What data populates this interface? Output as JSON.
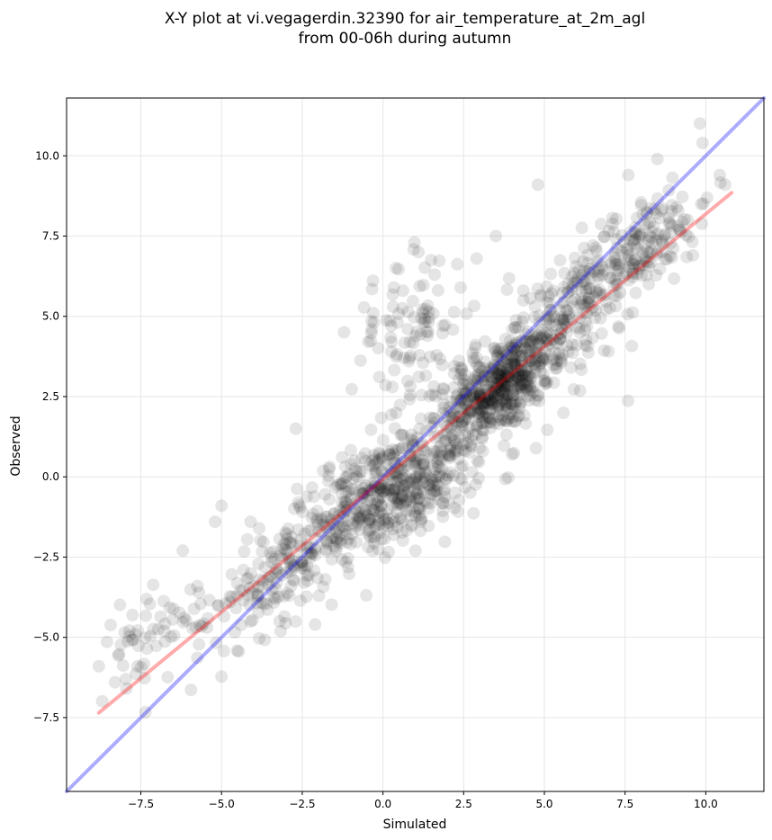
{
  "chart_data": {
    "type": "scatter",
    "title_line1": "X-Y plot at vi.vegagerdin.32390 for air_temperature_at_2m_agl",
    "title_line2": "from 00-06h during autumn",
    "xlabel": "Simulated",
    "ylabel": "Observed",
    "xlim": [
      -9.8,
      11.8
    ],
    "ylim": [
      -9.8,
      11.8
    ],
    "grid": true,
    "x_ticks": [
      -7.5,
      -5.0,
      -2.5,
      0.0,
      2.5,
      5.0,
      7.5,
      10.0
    ],
    "y_ticks": [
      -7.5,
      -5.0,
      -2.5,
      0.0,
      2.5,
      5.0,
      7.5,
      10.0
    ],
    "x_tick_labels": [
      "−7.5",
      "−5.0",
      "−2.5",
      "0.0",
      "2.5",
      "5.0",
      "7.5",
      "10.0"
    ],
    "y_tick_labels": [
      "−7.5",
      "−5.0",
      "−2.5",
      "0.0",
      "2.5",
      "5.0",
      "7.5",
      "10.0"
    ],
    "point_color": "#000000",
    "point_alpha": 0.1,
    "identity_line": {
      "color": "#0000ff",
      "alpha": 0.33,
      "from": [
        -9.8,
        -9.8
      ],
      "to": [
        11.8,
        11.8
      ]
    },
    "fit_line": {
      "color": "#ff0000",
      "alpha": 0.33,
      "from": [
        -8.8,
        -7.35
      ],
      "to": [
        10.8,
        8.85
      ]
    },
    "point_clusters": [
      {
        "cx": 3.6,
        "cy": 2.8,
        "sx": 0.8,
        "sy": 0.8,
        "rho": 0.5,
        "n": 380
      },
      {
        "cx": 1.0,
        "cy": -0.4,
        "sx": 1.0,
        "sy": 0.8,
        "rho": 0.5,
        "n": 220
      },
      {
        "cx": 5.8,
        "cy": 5.0,
        "sx": 1.4,
        "sy": 1.3,
        "rho": 0.8,
        "n": 220
      },
      {
        "cx": 8.0,
        "cy": 7.4,
        "sx": 1.1,
        "sy": 1.0,
        "rho": 0.7,
        "n": 130
      },
      {
        "cx": -1.0,
        "cy": -1.0,
        "sx": 1.4,
        "sy": 1.3,
        "rho": 0.75,
        "n": 220
      },
      {
        "cx": -3.5,
        "cy": -3.2,
        "sx": 1.2,
        "sy": 1.1,
        "rho": 0.7,
        "n": 120
      },
      {
        "cx": -7.3,
        "cy": -4.9,
        "sx": 0.8,
        "sy": 0.7,
        "rho": 0.5,
        "n": 50
      },
      {
        "cx": 0.8,
        "cy": 4.6,
        "sx": 0.9,
        "sy": 1.1,
        "rho": 0.3,
        "n": 90
      },
      {
        "cx": 2.4,
        "cy": 1.8,
        "sx": 2.5,
        "sy": 2.3,
        "rho": 0.85,
        "n": 260
      }
    ],
    "outliers": [
      [
        4.8,
        9.1
      ],
      [
        9.9,
        10.4
      ],
      [
        10.6,
        9.1
      ],
      [
        7.6,
        9.4
      ],
      [
        8.5,
        9.9
      ],
      [
        -8.8,
        -5.9
      ],
      [
        -8.3,
        -6.4
      ],
      [
        -6.2,
        -2.3
      ],
      [
        -5.0,
        -0.9
      ],
      [
        -5.2,
        -1.4
      ],
      [
        0.4,
        6.5
      ],
      [
        1.1,
        7.0
      ],
      [
        -0.3,
        5.1
      ],
      [
        9.6,
        6.9
      ],
      [
        -2.7,
        1.5
      ],
      [
        -4.1,
        -1.4
      ],
      [
        2.9,
        6.8
      ],
      [
        3.5,
        7.5
      ],
      [
        -7.6,
        -5.9
      ],
      [
        -2.1,
        -4.6
      ],
      [
        -3.2,
        -4.5
      ],
      [
        1.6,
        6.3
      ]
    ]
  }
}
